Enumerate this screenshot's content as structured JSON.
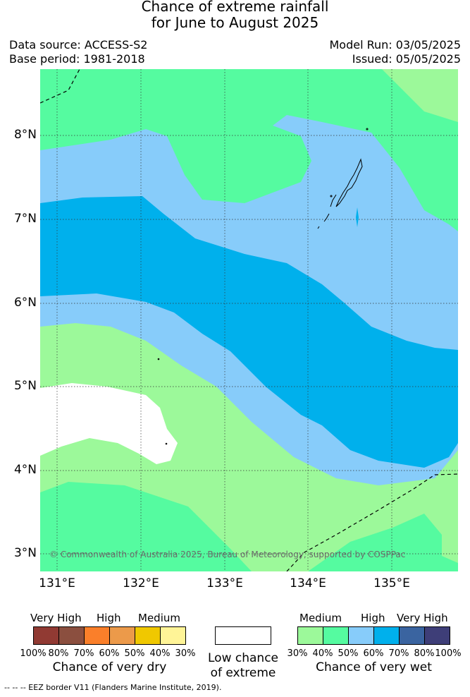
{
  "header": {
    "title_line1": "Chance of extreme rainfall",
    "title_line2": "for June to August 2025",
    "data_source": "Data source: ACCESS-S2",
    "base_period": "Base period: 1981-2018",
    "model_run": "Model Run: 03/05/2025",
    "issued": "Issued: 05/05/2025"
  },
  "map": {
    "lat_labels": [
      "8°N",
      "7°N",
      "6°N",
      "5°N",
      "4°N",
      "3°N"
    ],
    "lon_labels": [
      "131°E",
      "132°E",
      "133°E",
      "134°E",
      "135°E"
    ],
    "copyright": "© Commonwealth of Australia 2025, Bureau of Meteorology, supported by COSPPac",
    "colors": {
      "medium_wet": "#9cf99a",
      "p40_50_wet": "#55fba0",
      "high_wet": "#87ccfa",
      "p60_70_wet": "#00b0ec",
      "low_chance": "#ffffff"
    }
  },
  "legend": {
    "dry": {
      "groups": [
        "Very High",
        "High",
        "Medium"
      ],
      "ticks": [
        "100%",
        "80%",
        "70%",
        "60%",
        "50%",
        "40%",
        "30%"
      ],
      "colors": [
        "#913a33",
        "#8b4f3f",
        "#fa7f2a",
        "#ec9a4a",
        "#f0c800",
        "#fff497"
      ],
      "caption": "Chance of very dry"
    },
    "low": {
      "caption_line1": "Low chance",
      "caption_line2": "of extreme",
      "color": "#ffffff"
    },
    "wet": {
      "groups": [
        "Medium",
        "High",
        "Very High"
      ],
      "ticks": [
        "30%",
        "40%",
        "50%",
        "60%",
        "70%",
        "80%",
        "100%"
      ],
      "colors": [
        "#9cf99a",
        "#55fba0",
        "#87ccfa",
        "#00b0ec",
        "#3a64a0",
        "#3e3e78"
      ],
      "caption": "Chance of very wet"
    }
  },
  "footer": {
    "eez_note": "--  --  -- EEZ border V11 (Flanders Marine Institute, 2019)."
  }
}
